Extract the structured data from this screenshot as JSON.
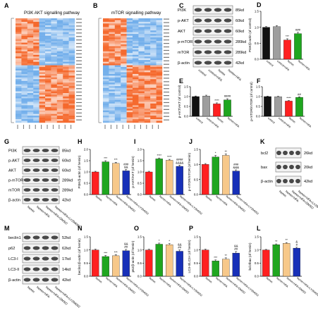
{
  "panels": {
    "A": {
      "letter": "A",
      "title": "PI3K AKT signalling  pathway"
    },
    "B": {
      "letter": "B",
      "title": "mTOR signalling  pathway"
    },
    "C": {
      "letter": "C",
      "bands": [
        {
          "name": "PI3K",
          "kd": "85kd"
        },
        {
          "name": "p-AKT",
          "kd": "60kd"
        },
        {
          "name": "AKT",
          "kd": "60kd"
        },
        {
          "name": "p-mTOR",
          "kd": "289kd"
        },
        {
          "name": "mTOR",
          "kd": "289kd"
        },
        {
          "name": "β-actin",
          "kd": "42kd"
        }
      ],
      "lanes": [
        "control",
        "control+HFA",
        "hemin",
        "hemin+HFA"
      ]
    },
    "G": {
      "letter": "G",
      "bands": [
        {
          "name": "PI3K",
          "kd": "85kd"
        },
        {
          "name": "p-AKT",
          "kd": "60kd"
        },
        {
          "name": "AKT",
          "kd": "60kd"
        },
        {
          "name": "p-mTOR",
          "kd": "289kd"
        },
        {
          "name": "mTOR",
          "kd": "289kd"
        },
        {
          "name": "β-actin",
          "kd": "42kd"
        }
      ],
      "lanes": [
        "hemin",
        "hemin+HFA",
        "hemin+HFA+DMSO",
        "hemin+HFA+LY294002"
      ]
    },
    "K": {
      "letter": "K",
      "bands": [
        {
          "name": "bcl2",
          "kd": "26kd"
        },
        {
          "name": "bax",
          "kd": "20kd"
        },
        {
          "name": "β-actin",
          "kd": "42kd"
        }
      ],
      "lanes": [
        "hemin",
        "hemin+HFA",
        "hemin+HFA+DMSO",
        "hemin+HFA+LY294002"
      ]
    },
    "M": {
      "letter": "M",
      "bands": [
        {
          "name": "beclin1",
          "kd": "52kd"
        },
        {
          "name": "p62",
          "kd": "62kd"
        },
        {
          "name": "LC3-I",
          "kd": "17kd"
        },
        {
          "name": "LC3-II",
          "kd": "14kd"
        },
        {
          "name": "β-actin",
          "kd": "42kd"
        }
      ],
      "lanes": [
        "hemin",
        "hemin+HFA",
        "hemin+HFA+DMSO",
        "hemin+HFA+LY294002"
      ]
    }
  },
  "colors": {
    "black": "#111111",
    "gray": "#9e9e9e",
    "red": "#ff2020",
    "green": "#1fa61f",
    "peach": "#f7c88a",
    "blue": "#1730b8"
  },
  "chart_data": [
    {
      "id": "D",
      "type": "bar",
      "title": "",
      "ylabel": "PI3K/β-actin (of control)",
      "ylim": [
        0,
        1.5
      ],
      "yticks": [
        "0.0",
        "0.5",
        "1.0",
        "1.5"
      ],
      "categories": [
        "control",
        "control+HFA",
        "hemin",
        "hemin+HFA"
      ],
      "values": [
        1.0,
        1.02,
        0.6,
        0.8
      ],
      "errors": [
        0.02,
        0.03,
        0.04,
        0.04
      ],
      "sig": [
        "",
        "",
        "***",
        "###"
      ],
      "colors": [
        "#111111",
        "#9e9e9e",
        "#ff2020",
        "#1fa61f"
      ]
    },
    {
      "id": "E",
      "type": "bar",
      "title": "",
      "ylabel": "p-AKT/AKT (of control)",
      "ylim": [
        0,
        1.5
      ],
      "yticks": [
        "0.0",
        "0.5",
        "1.0",
        "1.5"
      ],
      "categories": [
        "control",
        "control+HFA",
        "hemin",
        "hemin+HFA"
      ],
      "values": [
        1.0,
        1.03,
        0.63,
        0.83
      ],
      "errors": [
        0.03,
        0.04,
        0.05,
        0.06
      ],
      "sig": [
        "",
        "",
        "****",
        "####"
      ],
      "colors": [
        "#111111",
        "#9e9e9e",
        "#ff2020",
        "#1fa61f"
      ]
    },
    {
      "id": "F",
      "type": "bar",
      "title": "",
      "ylabel": "p-mTOR/mTOR (of control)",
      "ylim": [
        0,
        1.5
      ],
      "yticks": [
        "0.0",
        "0.5",
        "1.0",
        "1.5"
      ],
      "categories": [
        "control",
        "control+HFA",
        "hemin",
        "hemin+HFA"
      ],
      "values": [
        1.0,
        0.99,
        0.77,
        0.96
      ],
      "errors": [
        0.02,
        0.02,
        0.03,
        0.03
      ],
      "sig": [
        "",
        "",
        "****",
        "##"
      ],
      "colors": [
        "#111111",
        "#9e9e9e",
        "#ff2020",
        "#1fa61f"
      ]
    },
    {
      "id": "H",
      "type": "bar",
      "title": "",
      "ylabel": "PI3K/β-actin (of hemin)",
      "ylim": [
        0,
        2.0
      ],
      "yticks": [
        "0.0",
        "0.5",
        "1.0",
        "1.5",
        "2.0"
      ],
      "categories": [
        "hemin",
        "hemin+HFA",
        "hemin+HFA+DMSO",
        "hemin+HFA+LY294002"
      ],
      "values": [
        1.0,
        1.45,
        1.38,
        1.05
      ],
      "errors": [
        0.03,
        0.05,
        0.05,
        0.06
      ],
      "sig": [
        "",
        "***",
        "***",
        "###\n&&"
      ],
      "colors": [
        "#ff2020",
        "#1fa61f",
        "#f7c88a",
        "#1730b8"
      ]
    },
    {
      "id": "I",
      "type": "bar",
      "title": "",
      "ylabel": "p-AKT/AKT (of hemin)",
      "ylim": [
        0,
        2.0
      ],
      "yticks": [
        "0.0",
        "0.5",
        "1.0",
        "1.5",
        "2.0"
      ],
      "categories": [
        "hemin",
        "hemin+HFA",
        "hemin+HFA+DMSO",
        "hemin+HFA+LY294002"
      ],
      "values": [
        1.0,
        1.58,
        1.52,
        1.25
      ],
      "errors": [
        0.03,
        0.04,
        0.04,
        0.05
      ],
      "sig": [
        "",
        "****",
        "****",
        "####\n&&&&"
      ],
      "colors": [
        "#ff2020",
        "#1fa61f",
        "#f7c88a",
        "#1730b8"
      ]
    },
    {
      "id": "J",
      "type": "bar",
      "title": "",
      "ylabel": "p-mTOR/mTOR (of hemin)",
      "ylim": [
        0,
        1.5
      ],
      "yticks": [
        "0.0",
        "0.5",
        "1.0",
        "1.5"
      ],
      "categories": [
        "hemin",
        "hemin+HFA",
        "hemin+HFA+DMSO",
        "hemin+HFA+LY294002"
      ],
      "values": [
        1.0,
        1.25,
        1.3,
        0.78
      ],
      "errors": [
        0.03,
        0.05,
        0.05,
        0.04
      ],
      "sig": [
        "",
        "*",
        "**",
        "###\n&&&"
      ],
      "colors": [
        "#ff2020",
        "#1fa61f",
        "#f7c88a",
        "#1730b8"
      ]
    },
    {
      "id": "N",
      "type": "bar",
      "title": "",
      "ylabel": "beclin1/β-actin (of hemin)",
      "ylim": [
        0,
        1.5
      ],
      "yticks": [
        "0.0",
        "0.5",
        "1.0",
        "1.5"
      ],
      "categories": [
        "hemin",
        "hemin+HFA",
        "hemin+HFA+DMSO",
        "hemin+HFA+LY294002"
      ],
      "values": [
        1.0,
        0.75,
        0.78,
        0.97
      ],
      "errors": [
        0.03,
        0.04,
        0.04,
        0.05
      ],
      "sig": [
        "",
        "***",
        "***",
        "&&\n##"
      ],
      "colors": [
        "#ff2020",
        "#1fa61f",
        "#f7c88a",
        "#1730b8"
      ]
    },
    {
      "id": "O",
      "type": "bar",
      "title": "",
      "ylabel": "p62/β-actin (of hemin)",
      "ylim": [
        0,
        1.5
      ],
      "yticks": [
        "0.0",
        "0.5",
        "1.0",
        "1.5"
      ],
      "categories": [
        "hemin",
        "hemin+HFA",
        "hemin+HFA+DMSO",
        "hemin+HFA+LY294002"
      ],
      "values": [
        1.0,
        1.22,
        1.2,
        0.95
      ],
      "errors": [
        0.03,
        0.04,
        0.04,
        0.05
      ],
      "sig": [
        "",
        "*",
        "*",
        "&&\n##"
      ],
      "colors": [
        "#ff2020",
        "#1fa61f",
        "#f7c88a",
        "#1730b8"
      ]
    },
    {
      "id": "P",
      "type": "bar",
      "title": "",
      "ylabel": "LC3-II/LC3-I (of hemin)",
      "ylim": [
        0,
        1.5
      ],
      "yticks": [
        "0.0",
        "0.5",
        "1.0",
        "1.5"
      ],
      "categories": [
        "hemin",
        "hemin+HFA",
        "hemin+HFA+DMSO",
        "hemin+HFA+LY294002"
      ],
      "values": [
        1.0,
        0.58,
        0.65,
        0.88
      ],
      "errors": [
        0.03,
        0.04,
        0.05,
        0.06
      ],
      "sig": [
        "",
        "***",
        "**",
        "&&\n##"
      ],
      "colors": [
        "#ff2020",
        "#1fa61f",
        "#f7c88a",
        "#1730b8"
      ]
    },
    {
      "id": "L",
      "type": "bar",
      "title": "",
      "ylabel": "bcl2/bax (of hemin)",
      "ylim": [
        0,
        1.5
      ],
      "yticks": [
        "0.0",
        "0.5",
        "1.0",
        "1.5"
      ],
      "categories": [
        "hemin",
        "hemin+HFA",
        "hemin+HFA+DMSO",
        "hemin+HFA+LY294002"
      ],
      "values": [
        1.0,
        1.2,
        1.25,
        1.07
      ],
      "errors": [
        0.02,
        0.03,
        0.03,
        0.03
      ],
      "sig": [
        "",
        "**",
        "**",
        "&\n#"
      ],
      "colors": [
        "#ff2020",
        "#1fa61f",
        "#f7c88a",
        "#1730b8"
      ]
    }
  ]
}
